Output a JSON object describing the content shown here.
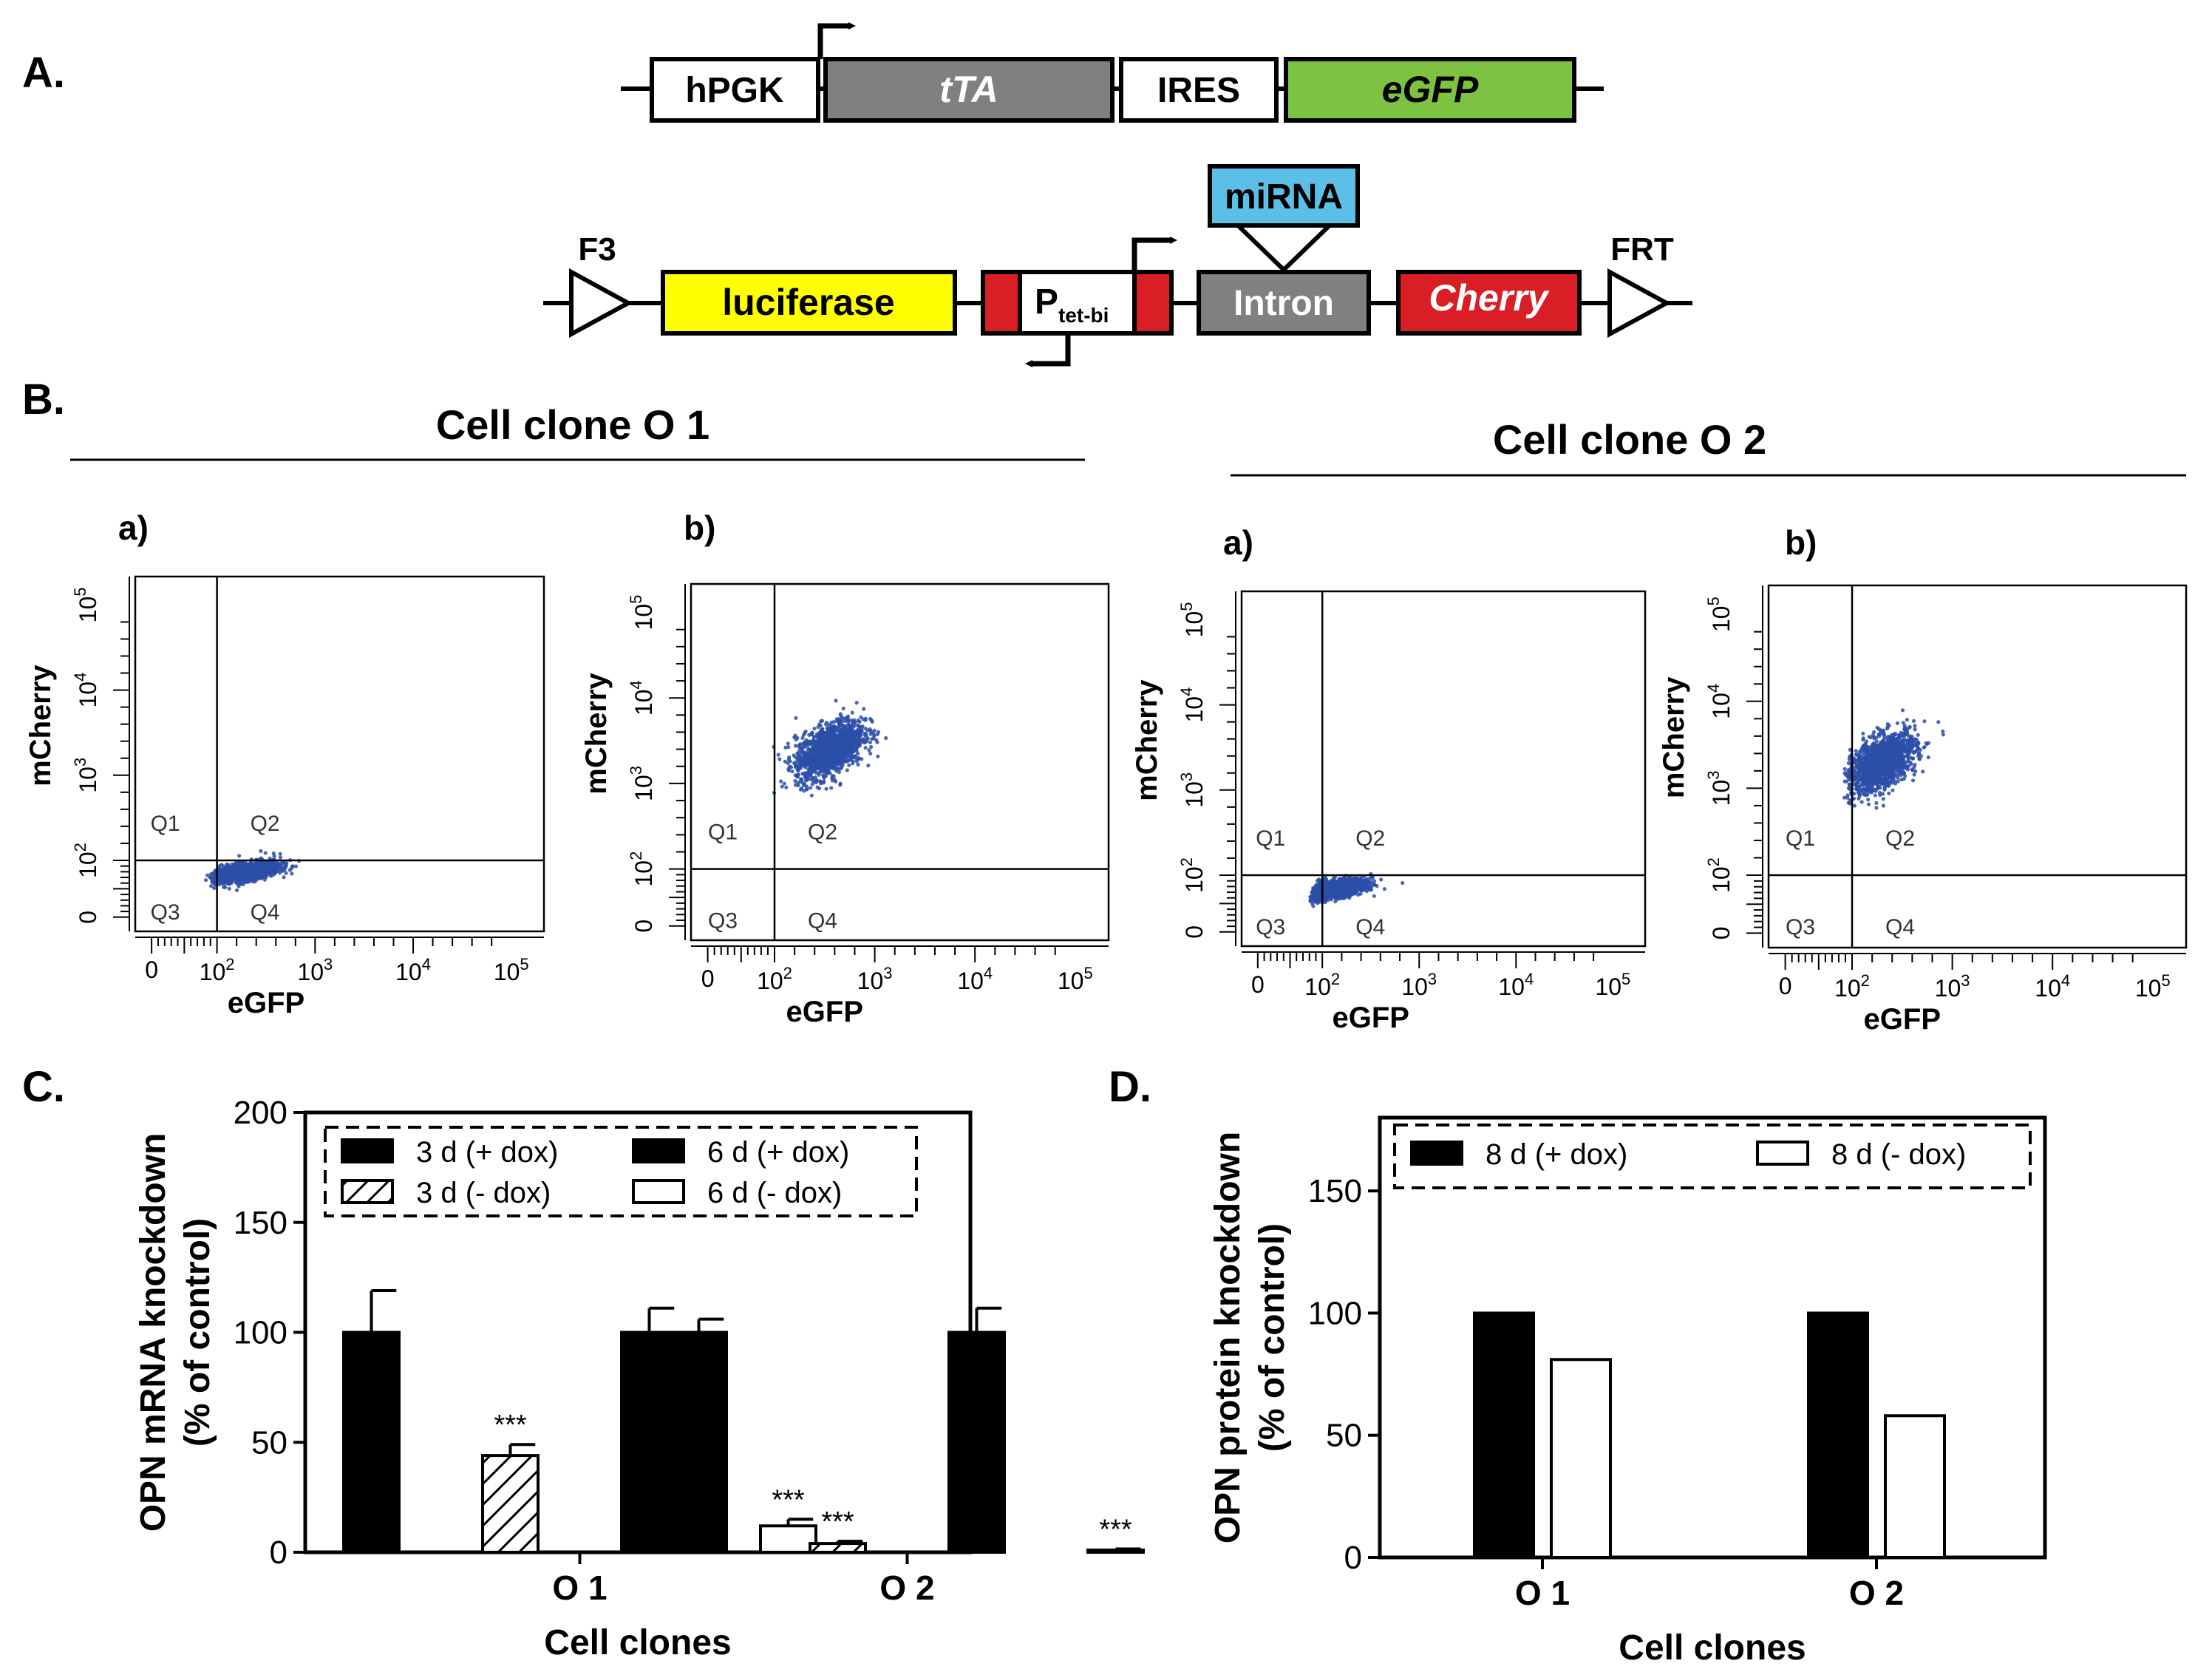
{
  "panel_labels": {
    "a": "A.",
    "b": "B.",
    "c": "C.",
    "d": "D."
  },
  "construct1": {
    "hpgk": "hPGK",
    "tta": "tTA",
    "ires": "IRES",
    "egfp": "eGFP",
    "colors": {
      "tta": "#808080",
      "egfp": "#7dc241"
    }
  },
  "construct2": {
    "f3": "F3",
    "luciferase": "luciferase",
    "ptet": "P",
    "ptet_sub": "tet-bi",
    "intron": "Intron",
    "mirna": "miRNA",
    "cherry": "Cherry",
    "frt": "FRT",
    "colors": {
      "luciferase": "#ffff00",
      "red": "#d91e25",
      "intron": "#808080",
      "mirna": "#5bbfe8"
    }
  },
  "flow": {
    "clone1_title": "Cell clone O 1",
    "clone2_title": "Cell clone O 2",
    "xlabel": "eGFP",
    "ylabel": "mCherry",
    "dot_color": "#2b4fa8",
    "tick_zero": "0",
    "tick_base": "10",
    "tick_exps": [
      "2",
      "3",
      "4",
      "5"
    ],
    "quadrants": [
      "Q1",
      "Q2",
      "Q3",
      "Q4"
    ],
    "plots": [
      {
        "label": "a)",
        "cluster": {
          "egfp_log": 2.3,
          "mcherry_log": 1.6
        }
      },
      {
        "label": "b)",
        "cluster": {
          "egfp_log": 2.55,
          "mcherry_log": 3.4
        }
      },
      {
        "label": "a)",
        "cluster": {
          "egfp_log": 2.1,
          "mcherry_log": 1.5
        }
      },
      {
        "label": "b)",
        "cluster": {
          "egfp_log": 2.3,
          "mcherry_log": 3.3
        }
      }
    ]
  },
  "chart_data": [
    {
      "type": "bar",
      "xlabel": "Cell clones",
      "ylabel": "OPN mRNA knockdown",
      "ylabel2": "(% of control)",
      "categories": [
        "O 1",
        "O 2"
      ],
      "ylim": [
        0,
        200
      ],
      "yticks": [
        0,
        50,
        100,
        150,
        200
      ],
      "series": [
        {
          "name": "3 d (+ dox)",
          "fill": "black",
          "values": [
            100,
            100
          ],
          "errors": [
            19,
            6
          ]
        },
        {
          "name": "3 d (- dox)",
          "fill": "hatched",
          "values": [
            44,
            4
          ],
          "errors": [
            5,
            1
          ],
          "annotations": [
            "***",
            "***"
          ]
        },
        {
          "name": "6 d (+ dox)",
          "fill": "black",
          "values": [
            100,
            100
          ],
          "errors": [
            11,
            11
          ]
        },
        {
          "name": "6 d (- dox)",
          "fill": "white",
          "values": [
            12,
            1
          ],
          "errors": [
            3,
            0.5
          ],
          "annotations": [
            "***",
            "***"
          ]
        }
      ],
      "legend_position": "top"
    },
    {
      "type": "bar",
      "xlabel": "Cell clones",
      "ylabel": "OPN protein knockdown",
      "ylabel2": "(% of control)",
      "categories": [
        "O 1",
        "O 2"
      ],
      "ylim": [
        0,
        180
      ],
      "yticks": [
        0,
        50,
        100,
        150
      ],
      "series": [
        {
          "name": "8 d (+ dox)",
          "fill": "black",
          "values": [
            100,
            100
          ]
        },
        {
          "name": "8 d (- dox)",
          "fill": "white",
          "values": [
            81,
            58
          ]
        }
      ],
      "legend_position": "top"
    }
  ]
}
